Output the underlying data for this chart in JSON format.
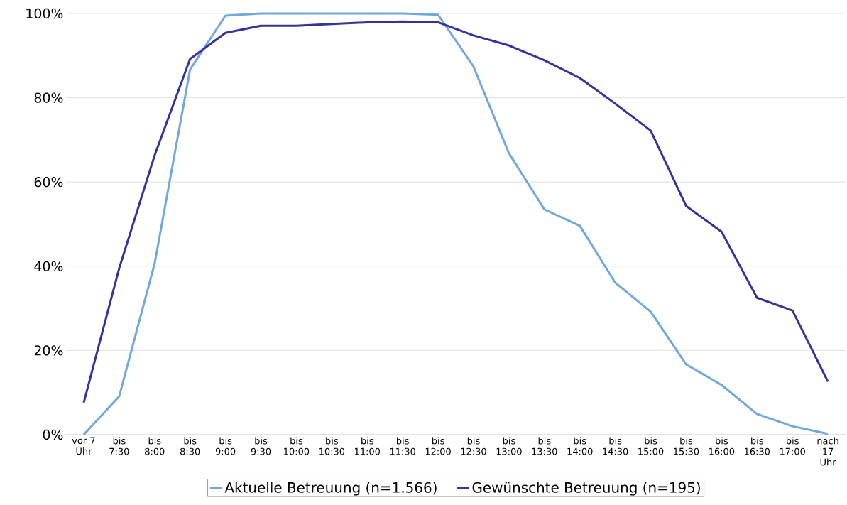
{
  "chart_data": {
    "type": "line",
    "categories": [
      "vor 7 Uhr",
      "bis 7:30",
      "bis 8:00",
      "bis 8:30",
      "bis 9:00",
      "bis 9:30",
      "bis 10:00",
      "bis 10:30",
      "bis 11:00",
      "bis 11:30",
      "bis 12:00",
      "bis 12:30",
      "bis 13:00",
      "bis 13:30",
      "bis 14:00",
      "bis 14:30",
      "bis 15:00",
      "bis 15:30",
      "bis 16:00",
      "bis 16:30",
      "bis 17:00",
      "nach 17 Uhr"
    ],
    "series": [
      {
        "name": "Aktuelle Betreuung (n=1.566)",
        "color": "#6fa8dc",
        "values": [
          0,
          9.1,
          40.6,
          86.7,
          99.5,
          100,
          100,
          100,
          100,
          100,
          99.7,
          87.4,
          66.8,
          53.5,
          49.6,
          36.1,
          29.2,
          16.7,
          11.8,
          4.9,
          2.0,
          0.2
        ]
      },
      {
        "name": "Gewünschte Betreuung (n=195)",
        "color": "#333399",
        "values": [
          7.6,
          39.5,
          66.3,
          89.2,
          95.4,
          97.1,
          97.1,
          97.5,
          97.9,
          98.1,
          97.9,
          94.8,
          92.4,
          88.9,
          84.7,
          78.6,
          72.2,
          54.3,
          48.2,
          32.5,
          29.5,
          12.6
        ]
      }
    ],
    "ylim": [
      0,
      100
    ],
    "yticks": [
      {
        "value": 0,
        "label": "0%"
      },
      {
        "value": 20,
        "label": "20%"
      },
      {
        "value": 40,
        "label": "40%"
      },
      {
        "value": 60,
        "label": "60%"
      },
      {
        "value": 80,
        "label": "80%"
      },
      {
        "value": 100,
        "label": "100%"
      }
    ],
    "grid": "y",
    "legend": "bottom",
    "marker": "none",
    "line_style": "solid"
  }
}
